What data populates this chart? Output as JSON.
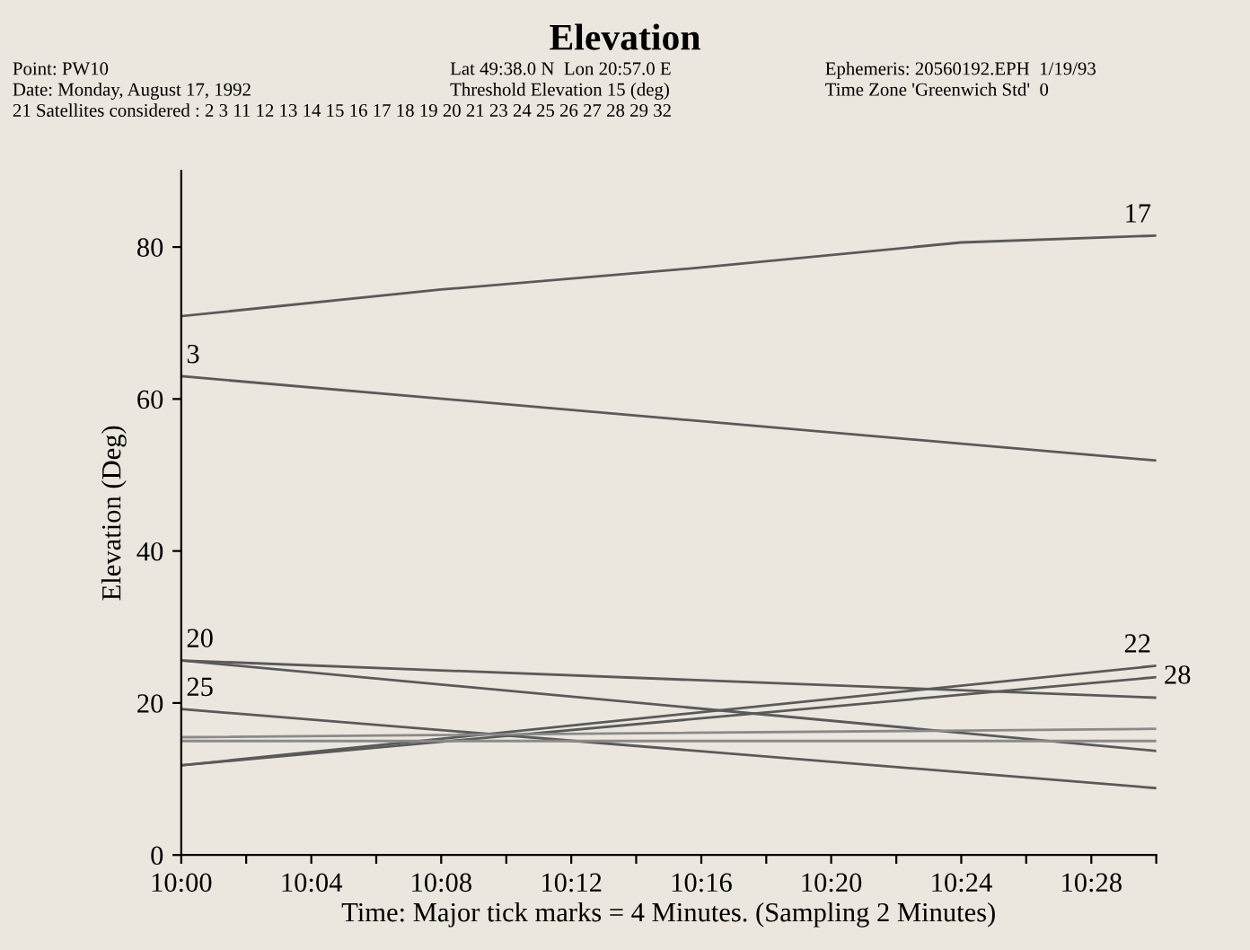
{
  "chart_data": {
    "type": "line",
    "title": "Elevation",
    "xlabel": "Time: Major tick marks = 4 Minutes. (Sampling 2 Minutes)",
    "ylabel": "Elevation (Deg)",
    "annotations": [
      "Point: PW10",
      "Lat 49:38.0 N  Lon 20:57.0 E",
      "Ephemeris: 20560192.EPH  1/19/93",
      "Date: Monday, August 17, 1992",
      "Threshold Elevation 15 (deg)",
      "Time Zone 'Greenwich Std'  0",
      "21 Satellites considered : 2 3 11 12 13 14 15 16 17 18 19 20 21 23 24 25 26 27 28 29 32"
    ],
    "series": [
      {
        "name": "17",
        "color": "#5a5a5a",
        "x": [
          10.0,
          10.1333,
          10.2667,
          10.4,
          10.5
        ],
        "values": [
          70.9,
          74.4,
          77.3,
          80.6,
          81.5
        ]
      },
      {
        "name": "3",
        "color": "#5a5a5a",
        "x": [
          10.0,
          10.5
        ],
        "values": [
          63,
          51.9
        ]
      },
      {
        "name": "20",
        "color": "#5a5a5a",
        "x": [
          10.0,
          10.5
        ],
        "values": [
          25.6,
          20.7
        ]
      },
      {
        "color": "#5a5a5a",
        "x": [
          10.0,
          10.5
        ],
        "values": [
          25.6,
          13.7
        ]
      },
      {
        "name": "25",
        "color": "#5a5a5a",
        "x": [
          10.0,
          10.5
        ],
        "values": [
          19.2,
          8.8
        ]
      },
      {
        "name": "22",
        "color": "#5a5a5a",
        "x": [
          10.0,
          10.5
        ],
        "values": [
          11.8,
          24.9
        ]
      },
      {
        "name": "28",
        "color": "#5a5a5a",
        "x": [
          10.0,
          10.5
        ],
        "values": [
          11.8,
          23.4
        ]
      },
      {
        "color": "#8a8a8a",
        "x": [
          10.0,
          10.5
        ],
        "values": [
          15.5,
          16.6
        ]
      }
    ],
    "ref_lines": [
      {
        "axis": "y",
        "value": 15,
        "color": "#8a8a8a"
      }
    ],
    "xlim": [
      10.0,
      10.5
    ],
    "ylim": [
      0,
      90
    ],
    "xticks": [
      {
        "value": 10.0,
        "label": "10:00"
      },
      {
        "value": 10.0333,
        "label": null
      },
      {
        "value": 10.0667,
        "label": "10:04"
      },
      {
        "value": 10.1,
        "label": null
      },
      {
        "value": 10.1333,
        "label": "10:08"
      },
      {
        "value": 10.1667,
        "label": null
      },
      {
        "value": 10.2,
        "label": "10:12"
      },
      {
        "value": 10.2333,
        "label": null
      },
      {
        "value": 10.2667,
        "label": "10:16"
      },
      {
        "value": 10.3,
        "label": null
      },
      {
        "value": 10.3333,
        "label": "10:20"
      },
      {
        "value": 10.3667,
        "label": null
      },
      {
        "value": 10.4,
        "label": "10:24"
      },
      {
        "value": 10.4333,
        "label": null
      },
      {
        "value": 10.4667,
        "label": "10:28"
      },
      {
        "value": 10.5,
        "label": null
      }
    ],
    "yticks": [
      0,
      20,
      40,
      60,
      80
    ],
    "grid": false,
    "legend": false
  }
}
